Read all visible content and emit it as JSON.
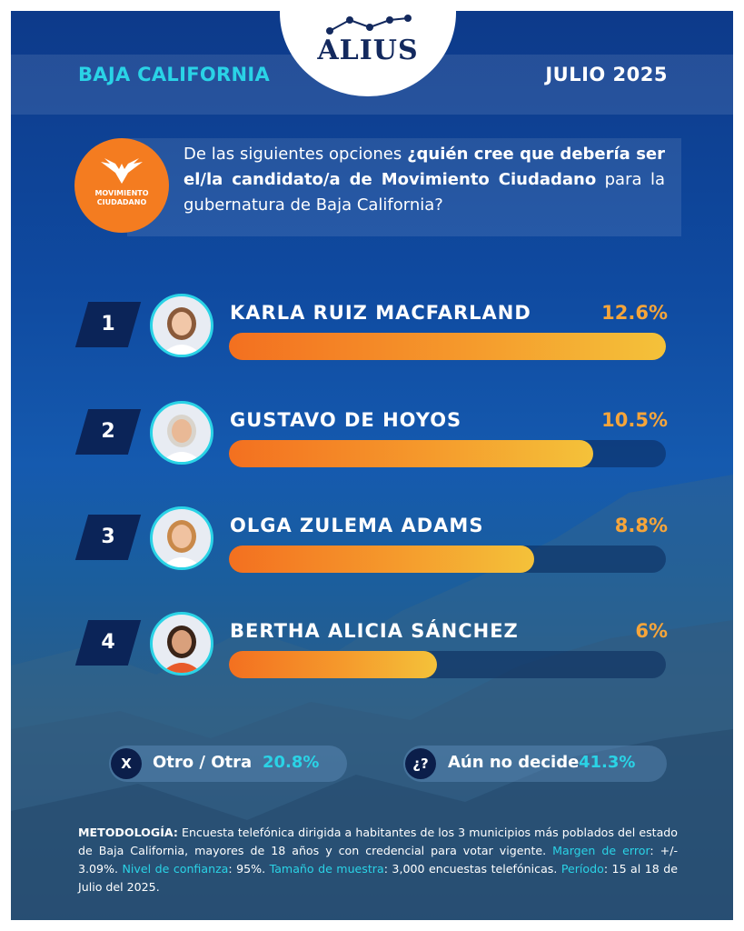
{
  "header": {
    "brand": "ALIUS",
    "region": "BAJA CALIFORNIA",
    "date": "JULIO 2025"
  },
  "party": {
    "name_line1": "MOVIMIENTO",
    "name_line2": "CIUDADANO",
    "color": "#f47c20"
  },
  "question": {
    "part1": "De las siguientes opciones ",
    "part2": "¿quién cree que debería ser el/la candidato/a de ",
    "part3": "Movimiento Ciudadano",
    "part4": " para la gubernatura de Baja California?"
  },
  "chart_data": {
    "type": "bar",
    "orientation": "horizontal",
    "categories": [
      "KARLA RUIZ MACFARLAND",
      "GUSTAVO DE HOYOS",
      "OLGA ZULEMA ADAMS",
      "BERTHA ALICIA SÁNCHEZ"
    ],
    "ranks": [
      "1",
      "2",
      "3",
      "4"
    ],
    "values": [
      12.6,
      10.5,
      8.8,
      6
    ],
    "value_labels": [
      "12.6%",
      "10.5%",
      "8.8%",
      "6%"
    ],
    "xlim": [
      0,
      12.6
    ],
    "bar_color_start": "#f37020",
    "bar_color_end": "#f4c23a"
  },
  "others": [
    {
      "icon": "X",
      "label": "Otro / Otra",
      "value": "20.8%"
    },
    {
      "icon": "¿?",
      "label": "Aún no decide",
      "value": "41.3%"
    }
  ],
  "methodology": {
    "l1": "METODOLOGÍA:",
    "t1": " Encuesta telefónica dirigida a habitantes de los 3 municipios más poblados del estado de Baja California, mayores de 18 años y con credencial para votar vigente. ",
    "l2": "Margen de error",
    "t2": ": +/- 3.09%. ",
    "l3": "Nivel de confianza",
    "t3": ": 95%. ",
    "l4": "Tamaño de muestra",
    "t4": ": 3,000 encuestas telefónicas. ",
    "l5": "Período",
    "t5": ": 15  al 18 de Julio del 2025."
  }
}
